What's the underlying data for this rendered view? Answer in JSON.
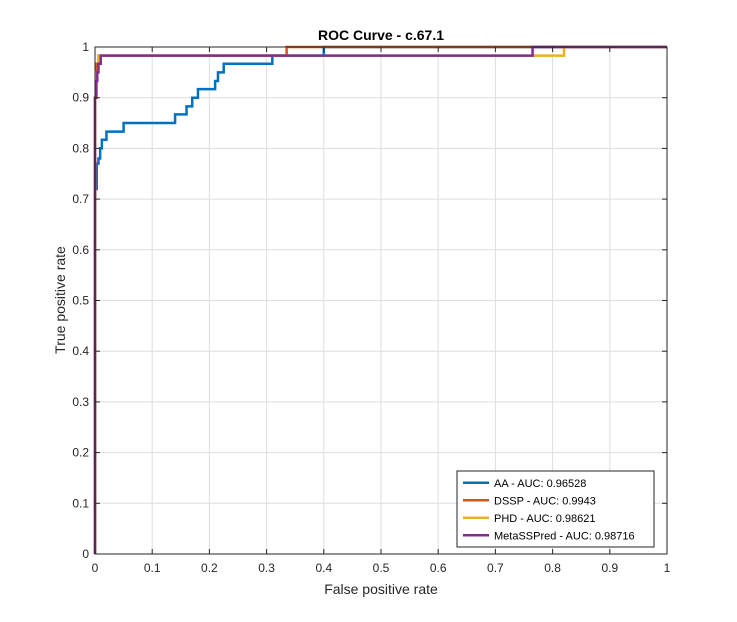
{
  "chart_data": {
    "type": "line",
    "title": "ROC Curve - c.67.1",
    "xlabel": "False positive rate",
    "ylabel": "True positive rate",
    "xlim": [
      0,
      1
    ],
    "ylim": [
      0,
      1
    ],
    "xticks": [
      "0",
      "0.1",
      "0.2",
      "0.3",
      "0.4",
      "0.5",
      "0.6",
      "0.7",
      "0.8",
      "0.9",
      "1"
    ],
    "yticks": [
      "0",
      "0.1",
      "0.2",
      "0.3",
      "0.4",
      "0.5",
      "0.6",
      "0.7",
      "0.8",
      "0.9",
      "1"
    ],
    "grid": true,
    "legend_position": "bottom-right",
    "series": [
      {
        "name": "AA - AUC: 0.96528",
        "color": "#0072BD",
        "points": [
          [
            0,
            0
          ],
          [
            0,
            0.72
          ],
          [
            0.003,
            0.72
          ],
          [
            0.003,
            0.77
          ],
          [
            0.006,
            0.77
          ],
          [
            0.006,
            0.78
          ],
          [
            0.009,
            0.78
          ],
          [
            0.009,
            0.8
          ],
          [
            0.012,
            0.8
          ],
          [
            0.012,
            0.817
          ],
          [
            0.02,
            0.817
          ],
          [
            0.02,
            0.833
          ],
          [
            0.05,
            0.833
          ],
          [
            0.05,
            0.85
          ],
          [
            0.14,
            0.85
          ],
          [
            0.14,
            0.867
          ],
          [
            0.16,
            0.867
          ],
          [
            0.16,
            0.883
          ],
          [
            0.17,
            0.883
          ],
          [
            0.17,
            0.9
          ],
          [
            0.18,
            0.9
          ],
          [
            0.18,
            0.917
          ],
          [
            0.21,
            0.917
          ],
          [
            0.21,
            0.933
          ],
          [
            0.215,
            0.933
          ],
          [
            0.215,
            0.95
          ],
          [
            0.225,
            0.95
          ],
          [
            0.225,
            0.967
          ],
          [
            0.31,
            0.967
          ],
          [
            0.31,
            0.983
          ],
          [
            0.4,
            0.983
          ],
          [
            0.4,
            1
          ],
          [
            1,
            1
          ]
        ]
      },
      {
        "name": "DSSP - AUC: 0.9943",
        "color": "#D95319",
        "points": [
          [
            0,
            0
          ],
          [
            0,
            0.9
          ],
          [
            0.003,
            0.9
          ],
          [
            0.003,
            0.967
          ],
          [
            0.006,
            0.967
          ],
          [
            0.006,
            0.983
          ],
          [
            0.335,
            0.983
          ],
          [
            0.335,
            1
          ],
          [
            1,
            1
          ]
        ]
      },
      {
        "name": "PHD - AUC: 0.98621",
        "color": "#EDB120",
        "points": [
          [
            0,
            0
          ],
          [
            0,
            0.9
          ],
          [
            0.003,
            0.9
          ],
          [
            0.003,
            0.95
          ],
          [
            0.006,
            0.95
          ],
          [
            0.006,
            0.983
          ],
          [
            0.82,
            0.983
          ],
          [
            0.82,
            1
          ],
          [
            1,
            1
          ]
        ]
      },
      {
        "name": "MetaSSPred - AUC: 0.98716",
        "color": "#7E2F8E",
        "points": [
          [
            0,
            0
          ],
          [
            0,
            0.9
          ],
          [
            0.002,
            0.9
          ],
          [
            0.002,
            0.933
          ],
          [
            0.004,
            0.933
          ],
          [
            0.004,
            0.95
          ],
          [
            0.006,
            0.95
          ],
          [
            0.006,
            0.967
          ],
          [
            0.01,
            0.967
          ],
          [
            0.01,
            0.983
          ],
          [
            0.765,
            0.983
          ],
          [
            0.765,
            1
          ],
          [
            1,
            1
          ]
        ]
      }
    ]
  }
}
